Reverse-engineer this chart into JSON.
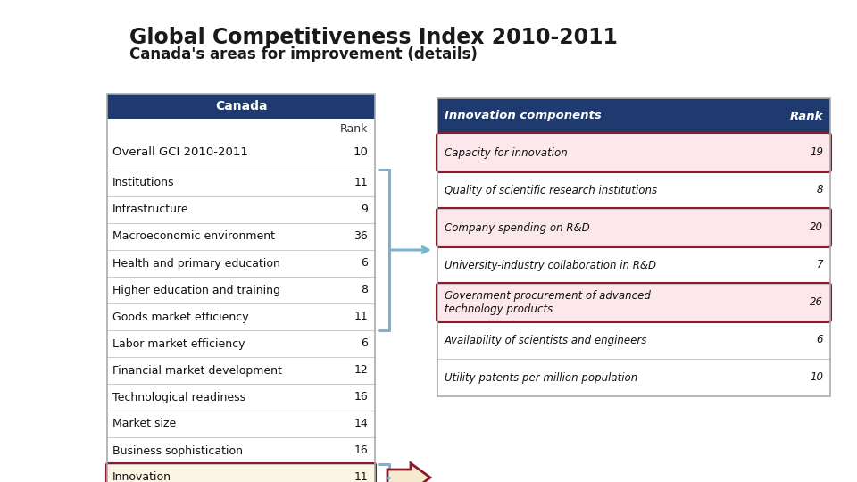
{
  "title": "Global Competitiveness Index 2010-2011",
  "subtitle": "Canada's areas for improvement (details)",
  "bg_color": "#ffffff",
  "left_table": {
    "header": "Canada",
    "header_bg": "#1f3a6e",
    "header_fg": "#ffffff",
    "col2_label": "Rank",
    "rows": [
      [
        "Overall GCI 2010-2011",
        "10",
        false
      ],
      [
        "Institutions",
        "11",
        false
      ],
      [
        "Infrastructure",
        "9",
        false
      ],
      [
        "Macroeconomic environment",
        "36",
        false
      ],
      [
        "Health and primary education",
        "6",
        false
      ],
      [
        "Higher education and training",
        "8",
        false
      ],
      [
        "Goods market efficiency",
        "11",
        false
      ],
      [
        "Labor market efficiency",
        "6",
        false
      ],
      [
        "Financial market development",
        "12",
        false
      ],
      [
        "Technological readiness",
        "16",
        false
      ],
      [
        "Market size",
        "14",
        false
      ],
      [
        "Business sophistication",
        "16",
        false
      ],
      [
        "Innovation",
        "11",
        true
      ]
    ]
  },
  "right_table": {
    "header_bg": "#1f3a6e",
    "header_fg": "#ffffff",
    "col1_label": "Innovation components",
    "col2_label": "Rank",
    "rows": [
      [
        "Capacity for innovation",
        "19",
        true
      ],
      [
        "Quality of scientific research institutions",
        "8",
        false
      ],
      [
        "Company spending on R&D",
        "20",
        true
      ],
      [
        "University-industry collaboration in R&D",
        "7",
        false
      ],
      [
        "Government procurement of advanced\ntechnology products",
        "26",
        true
      ],
      [
        "Availability of scientists and engineers",
        "6",
        false
      ],
      [
        "Utility patents per million population",
        "10",
        false
      ]
    ]
  },
  "highlight_bg": "#fce8ec",
  "highlight_border": "#8b1a2a",
  "innovation_bg": "#faf5e4",
  "normal_bg": "#ffffff",
  "bracket_color": "#7ab3d0",
  "arrow_border": "#8b1a2a",
  "arrow_fill": "#f5ead0",
  "divider_color": "#cccccc",
  "outer_border_color": "#aaaaaa"
}
